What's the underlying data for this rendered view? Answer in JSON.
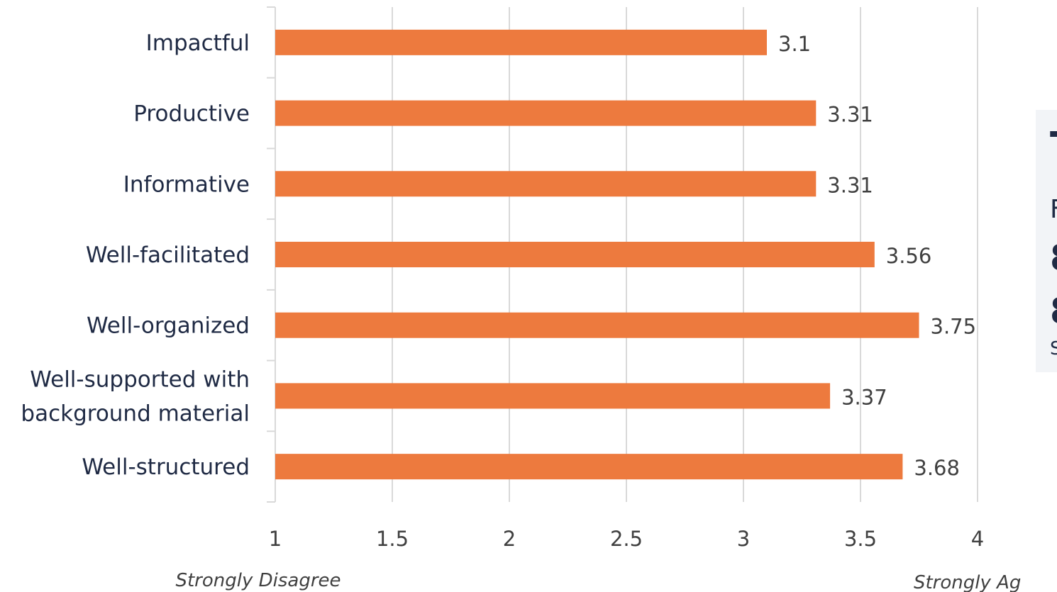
{
  "chart_data": {
    "type": "bar",
    "orientation": "horizontal",
    "categories": [
      "Impactful",
      "Productive",
      "Informative",
      "Well-facilitated",
      "Well-organized",
      "Well-supported with background material",
      "Well-structured"
    ],
    "category_lines": [
      [
        "Impactful"
      ],
      [
        "Productive"
      ],
      [
        "Informative"
      ],
      [
        "Well-facilitated"
      ],
      [
        "Well-organized"
      ],
      [
        "Well-supported with",
        "background material"
      ],
      [
        "Well-structured"
      ]
    ],
    "values": [
      3.1,
      3.31,
      3.31,
      3.56,
      3.75,
      3.37,
      3.68
    ],
    "value_labels": [
      "3.1",
      "3.31",
      "3.31",
      "3.56",
      "3.75",
      "3.37",
      "3.68"
    ],
    "xlim": [
      1,
      4
    ],
    "xticks": [
      "1",
      "1.5",
      "2",
      "2.5",
      "3",
      "3.5",
      "4"
    ],
    "x_scale_anchors": {
      "low": "Strongly Disagree",
      "high": "Strongly Agree"
    },
    "grid": true,
    "legend": "none",
    "colors": {
      "bar": "#ED7A3E"
    }
  },
  "side_panel": {
    "partial_glyphs": [
      "T",
      "F",
      "8",
      "8",
      "S"
    ]
  }
}
